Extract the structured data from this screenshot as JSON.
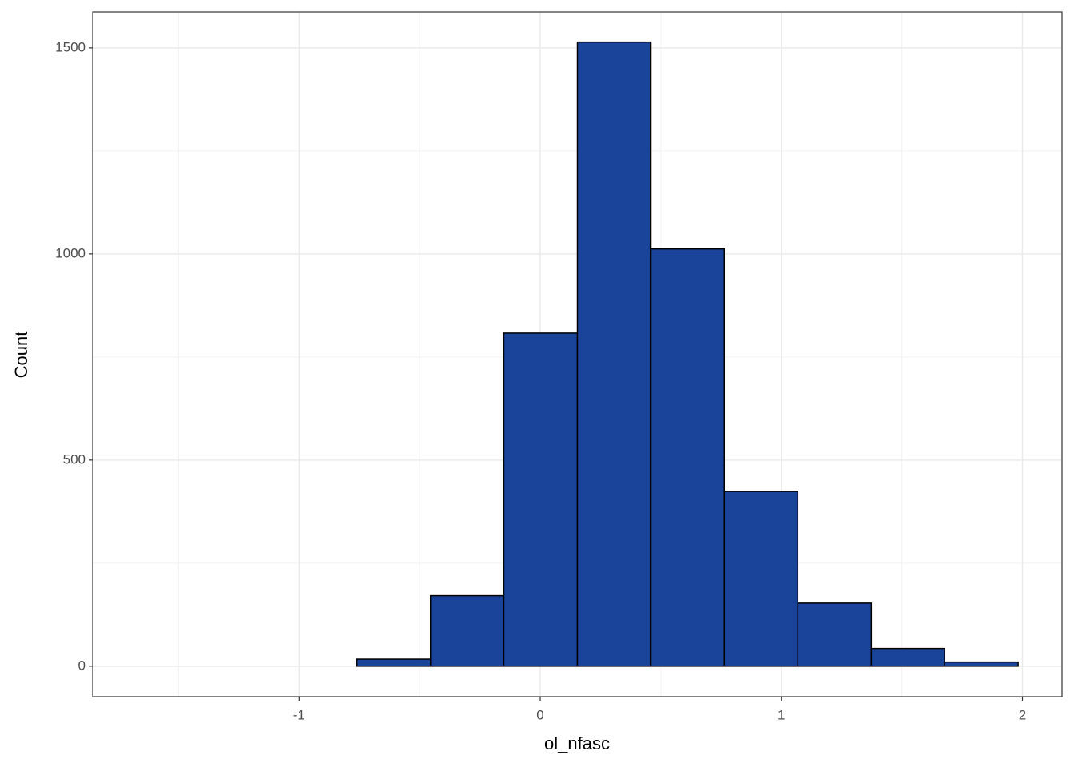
{
  "chart_data": {
    "type": "histogram",
    "x_label": "ol_nfasc",
    "y_label": "Count",
    "bins": [
      -1.674,
      -1.369,
      -1.065,
      -0.76,
      -0.455,
      -0.151,
      0.154,
      0.459,
      0.763,
      1.068,
      1.373,
      1.677,
      1.982
    ],
    "values": [
      0,
      0,
      0,
      17,
      171,
      808,
      1514,
      1012,
      424,
      153,
      43,
      10
    ],
    "color": "#1a4499",
    "edge_color": "#000000",
    "xlim": [
      -1.856,
      2.164
    ],
    "xticks": [
      -1,
      0,
      1,
      2
    ],
    "xminor": [
      -1.5,
      -0.5,
      0.5,
      1.5
    ],
    "ylim": [
      -74,
      1587
    ],
    "yticks": [
      0,
      500,
      1000,
      1500
    ],
    "yminor": [
      250,
      750,
      1250
    ],
    "grid": true
  }
}
